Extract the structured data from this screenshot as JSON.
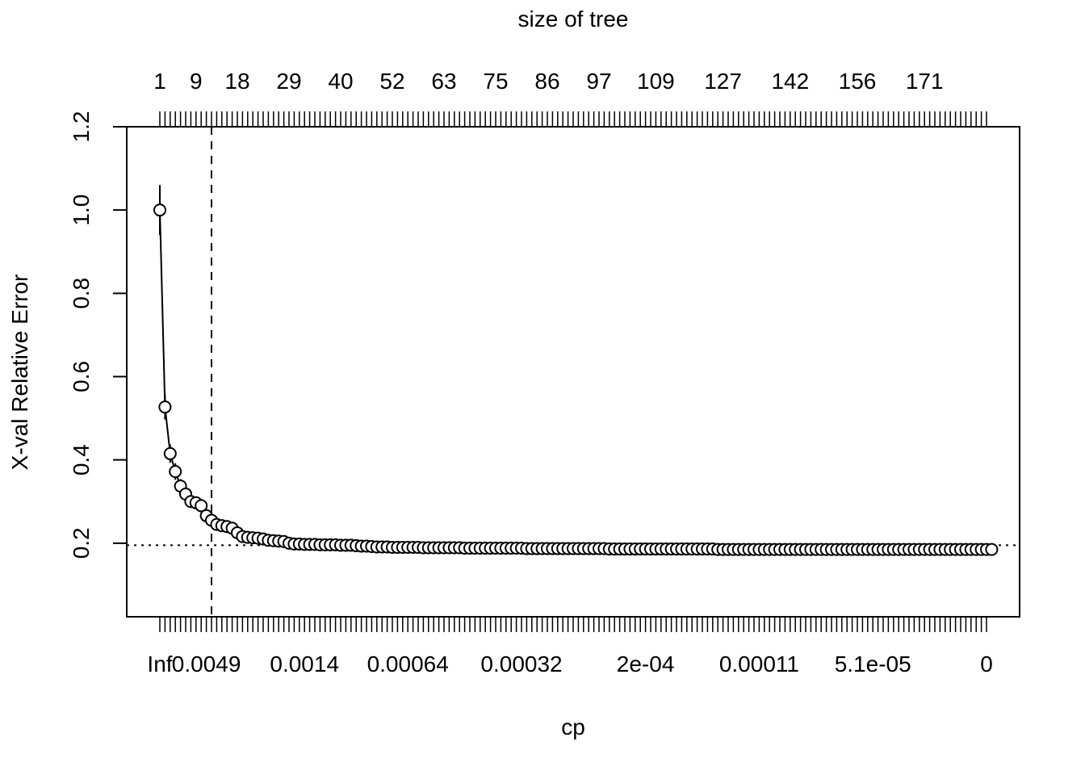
{
  "chart_data": {
    "type": "line",
    "top_axis_title": "size of tree",
    "xlabel": "cp",
    "ylabel": "X-val Relative Error",
    "ylim": [
      0,
      1.2
    ],
    "y_ticks": [
      "0.2",
      "0.4",
      "0.6",
      "0.8",
      "1.0",
      "1.2"
    ],
    "bottom_tick_labels": [
      {
        "index": 0,
        "label": "Inf"
      },
      {
        "index": 9,
        "label": "0.0049"
      },
      {
        "index": 28,
        "label": "0.0014"
      },
      {
        "index": 48,
        "label": "0.00064"
      },
      {
        "index": 70,
        "label": "0.00032"
      },
      {
        "index": 94,
        "label": "2e-04"
      },
      {
        "index": 116,
        "label": "0.00011"
      },
      {
        "index": 138,
        "label": "5.1e-05"
      },
      {
        "index": 160,
        "label": "0"
      }
    ],
    "top_tick_labels": [
      {
        "index": 0,
        "label": "1"
      },
      {
        "index": 7,
        "label": "9"
      },
      {
        "index": 15,
        "label": "18"
      },
      {
        "index": 25,
        "label": "29"
      },
      {
        "index": 35,
        "label": "40"
      },
      {
        "index": 45,
        "label": "52"
      },
      {
        "index": 55,
        "label": "63"
      },
      {
        "index": 65,
        "label": "75"
      },
      {
        "index": 75,
        "label": "86"
      },
      {
        "index": 85,
        "label": "97"
      },
      {
        "index": 96,
        "label": "109"
      },
      {
        "index": 109,
        "label": "127"
      },
      {
        "index": 122,
        "label": "142"
      },
      {
        "index": 135,
        "label": "156"
      },
      {
        "index": 148,
        "label": "171"
      }
    ],
    "n_points": 161,
    "series": [
      {
        "xerror": [
          1.0,
          0.527,
          0.415,
          0.372,
          0.337,
          0.318,
          0.3,
          0.297,
          0.29,
          0.266,
          0.255,
          0.245,
          0.242,
          0.24,
          0.236,
          0.225,
          0.216,
          0.214,
          0.213,
          0.212,
          0.21,
          0.207,
          0.206,
          0.205,
          0.204,
          0.2,
          0.198,
          0.198,
          0.197,
          0.197,
          0.197,
          0.196,
          0.196,
          0.196,
          0.196,
          0.195,
          0.195,
          0.195,
          0.194,
          0.193,
          0.193,
          0.192,
          0.191,
          0.191,
          0.191,
          0.19,
          0.19,
          0.19,
          0.19,
          0.19,
          0.19,
          0.189,
          0.189,
          0.189,
          0.189,
          0.189,
          0.189,
          0.189,
          0.189,
          0.188,
          0.188,
          0.188,
          0.188,
          0.188,
          0.188,
          0.188,
          0.188,
          0.188,
          0.188,
          0.188,
          0.188,
          0.187,
          0.187,
          0.187,
          0.187,
          0.187,
          0.187,
          0.187,
          0.187,
          0.187,
          0.187,
          0.187,
          0.187,
          0.187,
          0.187,
          0.187,
          0.187,
          0.186,
          0.186,
          0.186,
          0.186,
          0.186,
          0.186,
          0.186,
          0.186,
          0.186,
          0.186,
          0.186,
          0.186,
          0.186,
          0.186,
          0.186,
          0.186,
          0.186,
          0.186,
          0.186,
          0.186,
          0.186,
          0.185,
          0.185,
          0.185,
          0.185,
          0.185,
          0.185,
          0.185,
          0.185,
          0.185,
          0.185,
          0.185,
          0.185,
          0.185,
          0.185,
          0.185,
          0.185,
          0.185,
          0.185,
          0.185,
          0.185,
          0.185,
          0.185,
          0.185,
          0.185,
          0.185,
          0.185,
          0.185,
          0.185,
          0.185,
          0.185,
          0.185,
          0.185,
          0.185,
          0.185,
          0.185,
          0.185,
          0.185,
          0.185,
          0.185,
          0.185,
          0.185,
          0.185,
          0.185,
          0.185,
          0.185,
          0.185,
          0.185,
          0.185,
          0.185,
          0.185,
          0.185,
          0.185,
          0.185,
          0.185
        ],
        "xstd": [
          0.06,
          0.03,
          0.022,
          0.02,
          0.017,
          0.016,
          0.015,
          0.015,
          0.015,
          0.014,
          0.013,
          0.012,
          0.012,
          0.012,
          0.012
        ]
      }
    ],
    "threshold_line_y": 0.195,
    "selected_cp_index": 10,
    "grid": false,
    "legend": "none"
  }
}
